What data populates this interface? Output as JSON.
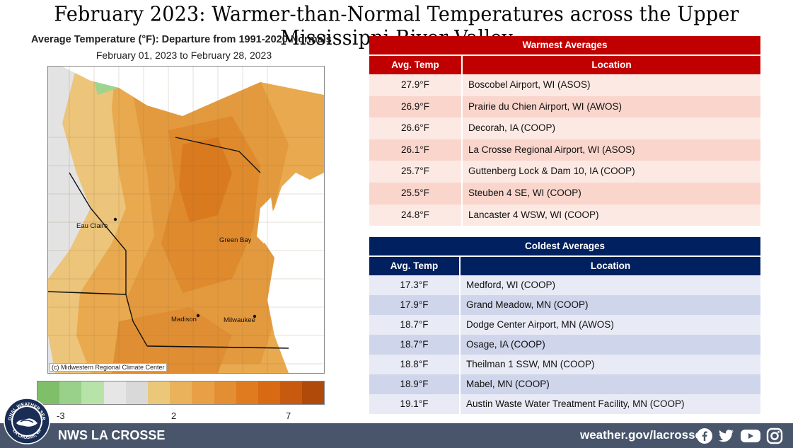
{
  "header": {
    "title": "February 2023:  Warmer-than-Normal Temperatures across the Upper Mississippi River Valley"
  },
  "map": {
    "title": "Average Temperature (°F): Departure from 1991-2020 Normals",
    "date_range": "February 01, 2023 to February 28, 2023",
    "credit": "(c) Midwestern Regional Climate Center",
    "cities": [
      "Eau Claire",
      "Green Bay",
      "Madison",
      "Milwaukee"
    ],
    "legend": {
      "colors": [
        "#7fbf6a",
        "#99d08a",
        "#b8e3a8",
        "#e6e6e6",
        "#d9d9d9",
        "#ebc77a",
        "#eab25a",
        "#e8a047",
        "#e48e33",
        "#e07b1f",
        "#d86a14",
        "#c85a0f",
        "#b04a0a"
      ],
      "labels": [
        "-3",
        "2",
        "7"
      ]
    }
  },
  "warmest": {
    "title": "Warmest  Averages",
    "col_temp": "Avg. Temp",
    "col_location": "Location",
    "header_color": "#c00000",
    "rows": [
      {
        "temp": "27.9°F",
        "location": "Boscobel  Airport,  WI (ASOS)"
      },
      {
        "temp": "26.9°F",
        "location": "Prairie du Chien Airport,  WI (AWOS)"
      },
      {
        "temp": "26.6°F",
        "location": "Decorah, IA (COOP)"
      },
      {
        "temp": "26.1°F",
        "location": "La Crosse Regional Airport,  WI (ASOS)"
      },
      {
        "temp": "25.7°F",
        "location": "Guttenberg  Lock & Dam 10, IA (COOP)"
      },
      {
        "temp": "25.5°F",
        "location": "Steuben  4 SE, WI  (COOP)"
      },
      {
        "temp": "24.8°F",
        "location": "Lancaster 4 WSW, WI (COOP)"
      }
    ]
  },
  "coldest": {
    "title": "Coldest Averages",
    "col_temp": "Avg. Temp",
    "col_location": "Location",
    "header_color": "#002060",
    "rows": [
      {
        "temp": "17.3°F",
        "location": "Medford,  WI (COOP)"
      },
      {
        "temp": "17.9°F",
        "location": "Grand Meadow,  MN (COOP)"
      },
      {
        "temp": "18.7°F",
        "location": "Dodge Center Airport,  MN (AWOS)"
      },
      {
        "temp": "18.7°F",
        "location": "Osage, IA (COOP)"
      },
      {
        "temp": "18.8°F",
        "location": "Theilman 1 SSW, MN (COOP)"
      },
      {
        "temp": "18.9°F",
        "location": "Mabel, MN (COOP)"
      },
      {
        "temp": "19.1°F",
        "location": "Austin Waste Water Treatment Facility, MN (COOP)"
      }
    ]
  },
  "footer": {
    "office": "NWS LA CROSSE",
    "website": "weather.gov/lacrosse",
    "badge_top": "NATIONAL WEATHER SERVICE",
    "badge_bottom": "LA CROSSE, WI",
    "icons": [
      "facebook-icon",
      "twitter-icon",
      "youtube-icon",
      "instagram-icon"
    ]
  }
}
